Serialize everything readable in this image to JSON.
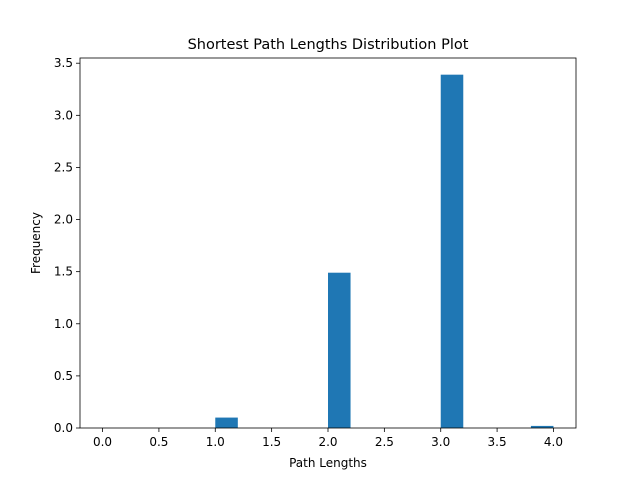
{
  "chart_data": {
    "type": "bar",
    "title": "Shortest Path Lengths Distribution Plot",
    "xlabel": "Path Lengths",
    "ylabel": "Frequency",
    "xlim": [
      -0.2,
      4.2
    ],
    "ylim": [
      0,
      3.55
    ],
    "bins": [
      {
        "x_start": 0.0,
        "x_end": 0.2,
        "value": 0.0
      },
      {
        "x_start": 0.2,
        "x_end": 0.4,
        "value": 0.0
      },
      {
        "x_start": 0.4,
        "x_end": 0.6,
        "value": 0.0
      },
      {
        "x_start": 0.6,
        "x_end": 0.8,
        "value": 0.0
      },
      {
        "x_start": 0.8,
        "x_end": 1.0,
        "value": 0.0
      },
      {
        "x_start": 1.0,
        "x_end": 1.2,
        "value": 0.1
      },
      {
        "x_start": 1.2,
        "x_end": 1.4,
        "value": 0.0
      },
      {
        "x_start": 1.4,
        "x_end": 1.6,
        "value": 0.0
      },
      {
        "x_start": 1.6,
        "x_end": 1.8,
        "value": 0.0
      },
      {
        "x_start": 1.8,
        "x_end": 2.0,
        "value": 0.0
      },
      {
        "x_start": 2.0,
        "x_end": 2.2,
        "value": 1.49
      },
      {
        "x_start": 2.2,
        "x_end": 2.4,
        "value": 0.0
      },
      {
        "x_start": 2.4,
        "x_end": 2.6,
        "value": 0.0
      },
      {
        "x_start": 2.6,
        "x_end": 2.8,
        "value": 0.0
      },
      {
        "x_start": 2.8,
        "x_end": 3.0,
        "value": 0.0
      },
      {
        "x_start": 3.0,
        "x_end": 3.2,
        "value": 3.39
      },
      {
        "x_start": 3.2,
        "x_end": 3.4,
        "value": 0.0
      },
      {
        "x_start": 3.4,
        "x_end": 3.6,
        "value": 0.0
      },
      {
        "x_start": 3.6,
        "x_end": 3.8,
        "value": 0.0
      },
      {
        "x_start": 3.8,
        "x_end": 4.0,
        "value": 0.02
      }
    ],
    "x_ticks": [
      0.0,
      0.5,
      1.0,
      1.5,
      2.0,
      2.5,
      3.0,
      3.5,
      4.0
    ],
    "x_tick_labels": [
      "0.0",
      "0.5",
      "1.0",
      "1.5",
      "2.0",
      "2.5",
      "3.0",
      "3.5",
      "4.0"
    ],
    "y_ticks": [
      0.0,
      0.5,
      1.0,
      1.5,
      2.0,
      2.5,
      3.0,
      3.5
    ],
    "y_tick_labels": [
      "0.0",
      "0.5",
      "1.0",
      "1.5",
      "2.0",
      "2.5",
      "3.0",
      "3.5"
    ],
    "grid": false,
    "colors": {
      "bar": "#1f77b4",
      "axis": "#000000"
    }
  }
}
